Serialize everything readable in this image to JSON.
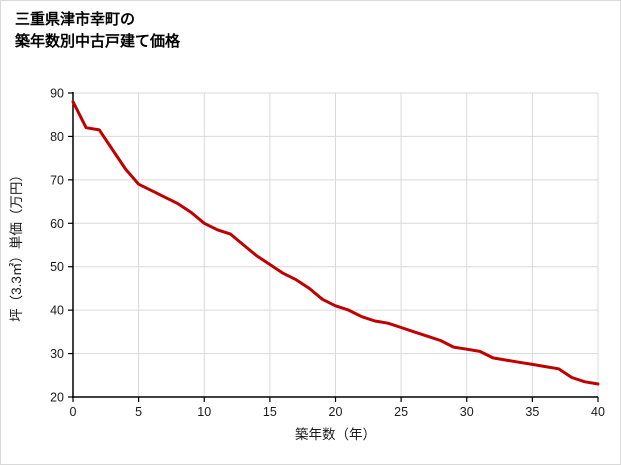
{
  "title": {
    "line1": "三重県津市幸町の",
    "line2": "築年数別中古戸建て価格"
  },
  "chart_data": {
    "type": "line",
    "title": "三重県津市幸町の築年数別中古戸建て価格",
    "xlabel": "築年数（年）",
    "ylabel": "坪（3.3㎡）単価（万円）",
    "x": [
      0,
      1,
      2,
      3,
      4,
      5,
      6,
      7,
      8,
      9,
      10,
      11,
      12,
      13,
      14,
      15,
      16,
      17,
      18,
      19,
      20,
      21,
      22,
      23,
      24,
      25,
      26,
      27,
      28,
      29,
      30,
      31,
      32,
      33,
      34,
      35,
      36,
      37,
      38,
      39,
      40
    ],
    "values": [
      88,
      82,
      81.5,
      77,
      72.5,
      69,
      67.5,
      66,
      64.5,
      62.5,
      60,
      58.5,
      57.5,
      55,
      52.5,
      50.5,
      48.5,
      47,
      45,
      42.5,
      41,
      40,
      38.5,
      37.5,
      37,
      36,
      35,
      34,
      33,
      31.5,
      31,
      30.5,
      29,
      28.5,
      28,
      27.5,
      27,
      26.5,
      24.5,
      23.5,
      23
    ],
    "xlim": [
      0,
      40
    ],
    "ylim": [
      20,
      90
    ],
    "xticks": [
      0,
      5,
      10,
      15,
      20,
      25,
      30,
      35,
      40
    ],
    "yticks": [
      20,
      30,
      40,
      50,
      60,
      70,
      80,
      90
    ],
    "grid": true,
    "grid_color": "#d9d9d9",
    "axis_color": "#000000",
    "tick_label_color": "#1a1a1a",
    "line_color": "#c00000",
    "legend": "none"
  }
}
